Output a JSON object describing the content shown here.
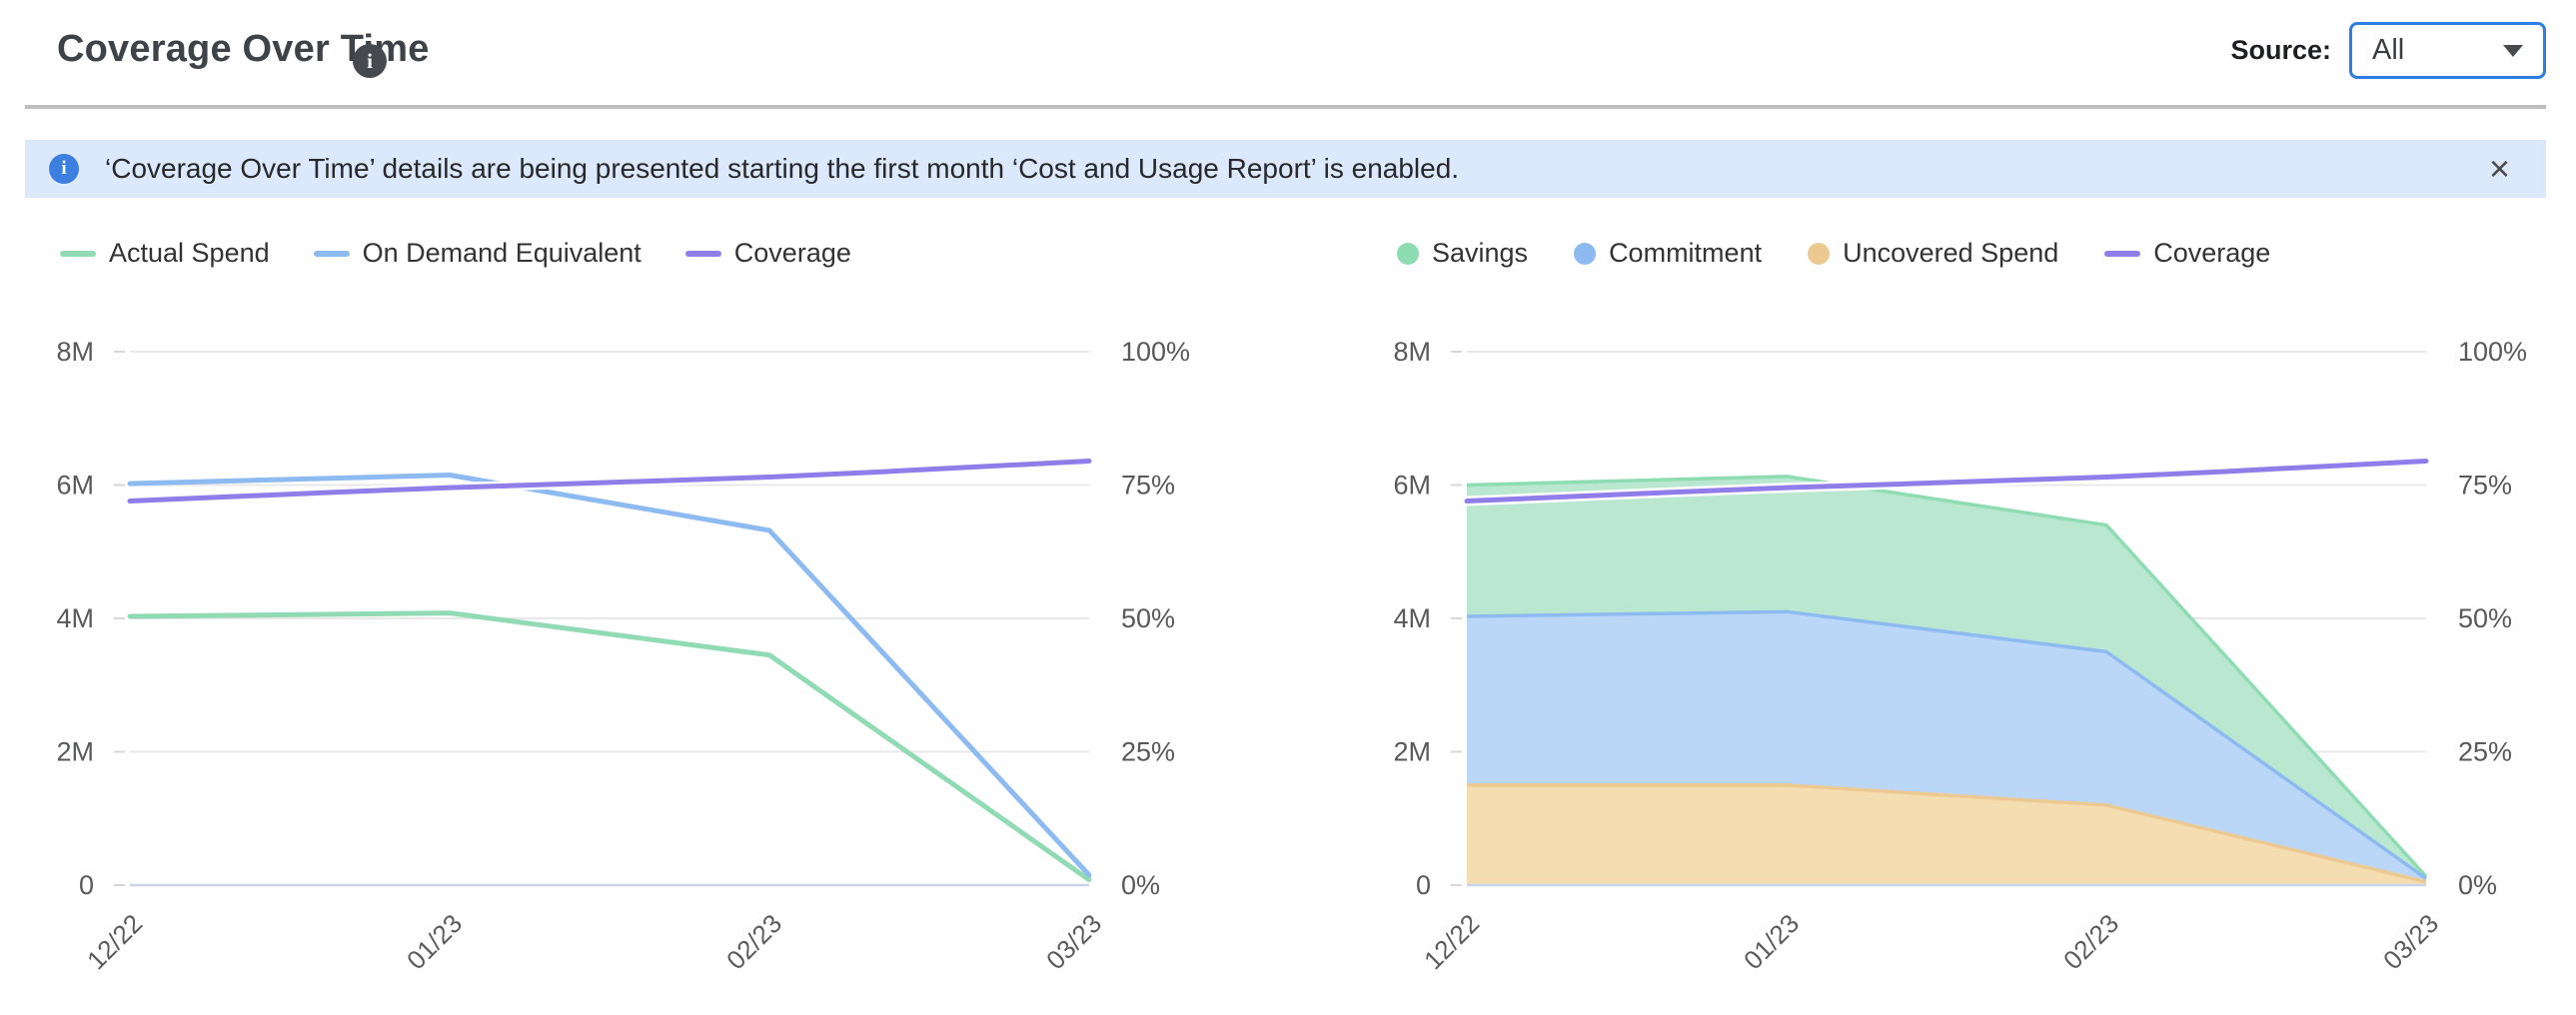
{
  "header": {
    "title": "Coverage Over Time",
    "info_icon": "i",
    "source_label": "Source:",
    "source_value": "All"
  },
  "banner": {
    "icon": "i",
    "text": "‘Coverage Over Time’ details are being presented starting the first month ‘Cost and Usage Report’ is enabled.",
    "close_label": "×"
  },
  "colors": {
    "accent_blue_border": "#2d7de2",
    "grid_line": "#e8e8e8",
    "zero_axis_line": "#c9d4ea",
    "tick_mark": "#d7d7d7",
    "axis_label_text": "#58595b",
    "legend_text": "#333333",
    "banner_background": "#dce8fb",
    "banner_icon_blue": "#3c7fe1",
    "title_text": "#3f4247",
    "divider": "#bfbfbf"
  },
  "chart_data": [
    {
      "type": "line",
      "position": "left",
      "title": "",
      "categories": [
        "12/22",
        "01/23",
        "02/23",
        "03/23"
      ],
      "grid": true,
      "legend_position": "top-left",
      "y_axis_left": {
        "ticks": [
          "8M",
          "6M",
          "4M",
          "2M",
          "0"
        ],
        "range_millions": [
          0,
          8
        ]
      },
      "y_axis_right": {
        "ticks": [
          "100%",
          "75%",
          "50%",
          "25%",
          "0%"
        ],
        "range_percent": [
          0,
          100
        ]
      },
      "series": [
        {
          "name": "Actual Spend",
          "kind": "line",
          "marker": "line",
          "axis": "left",
          "color": "#90dbb3",
          "values_millions": [
            4.03,
            4.08,
            3.45,
            0.08
          ]
        },
        {
          "name": "On Demand Equivalent",
          "kind": "line",
          "marker": "line",
          "axis": "left",
          "color": "#8cbaf1",
          "values_millions": [
            6.02,
            6.15,
            5.32,
            0.15
          ]
        },
        {
          "name": "Coverage",
          "kind": "line",
          "marker": "line",
          "axis": "right",
          "color": "#8f7de9",
          "smooth": true,
          "halo": true,
          "values_percent": [
            72,
            74.5,
            76.5,
            79.5
          ]
        }
      ]
    },
    {
      "type": "area",
      "position": "right",
      "title": "",
      "stacked": true,
      "categories": [
        "12/22",
        "01/23",
        "02/23",
        "03/23"
      ],
      "grid": true,
      "legend_position": "top-left",
      "y_axis_left": {
        "ticks": [
          "8M",
          "6M",
          "4M",
          "2M",
          "0"
        ],
        "range_millions": [
          0,
          8
        ]
      },
      "y_axis_right": {
        "ticks": [
          "100%",
          "75%",
          "50%",
          "25%",
          "0%"
        ],
        "range_percent": [
          0,
          100
        ]
      },
      "series": [
        {
          "name": "Savings",
          "kind": "area",
          "marker": "dot",
          "axis": "left",
          "color": "#8edcb2",
          "fill": "#bae7d0",
          "stack_top_values_millions": [
            6.0,
            6.13,
            5.4,
            0.13
          ],
          "segment_values_millions": [
            1.97,
            2.03,
            1.9,
            0.03
          ]
        },
        {
          "name": "Commitment",
          "kind": "area",
          "marker": "dot",
          "axis": "left",
          "color": "#8cbaf1",
          "fill": "#bad7f8",
          "stack_top_values_millions": [
            4.03,
            4.1,
            3.5,
            0.1
          ],
          "segment_values_millions": [
            2.53,
            2.6,
            2.3,
            0.05
          ]
        },
        {
          "name": "Uncovered Spend",
          "kind": "area",
          "marker": "dot",
          "axis": "left",
          "color": "#edc992",
          "fill": "#f4ddb1",
          "stack_top_values_millions": [
            1.5,
            1.5,
            1.2,
            0.05
          ],
          "segment_values_millions": [
            1.5,
            1.5,
            1.2,
            0.05
          ]
        },
        {
          "name": "Coverage",
          "kind": "line",
          "marker": "line",
          "axis": "right",
          "color": "#8f7de9",
          "smooth": true,
          "halo": true,
          "values_percent": [
            72,
            74.5,
            76.5,
            79.5
          ]
        }
      ]
    }
  ]
}
